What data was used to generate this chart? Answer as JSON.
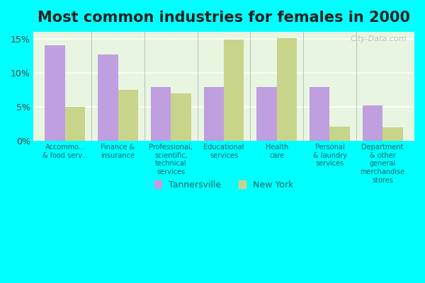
{
  "title": "Most common industries for females in 2000",
  "categories": [
    "Accommo...\n& food serv...",
    "Finance &\ninsurance",
    "Professional,\nscientific,\ntechnical\nservices",
    "Educational\nservices",
    "Health\ncare",
    "Personal\n& laundry\nservices",
    "Department\n& other\ngeneral\nmerchandise\nstores"
  ],
  "tannersville": [
    14.0,
    12.7,
    7.9,
    7.9,
    7.9,
    7.9,
    5.2
  ],
  "new_york": [
    5.0,
    7.5,
    7.0,
    14.8,
    15.1,
    2.1,
    2.0
  ],
  "tannersville_color": "#bf9fdf",
  "new_york_color": "#c8d48a",
  "background_color": "#e8f5e0",
  "outer_background": "#00ffff",
  "ylim": [
    0,
    16
  ],
  "yticks": [
    0,
    5,
    10,
    15
  ],
  "yticklabels": [
    "0%",
    "5%",
    "10%",
    "15%"
  ],
  "bar_width": 0.38,
  "title_fontsize": 15,
  "watermark_text": "City-Data.com",
  "legend_tannersville": "Tannersville",
  "legend_new_york": "New York"
}
